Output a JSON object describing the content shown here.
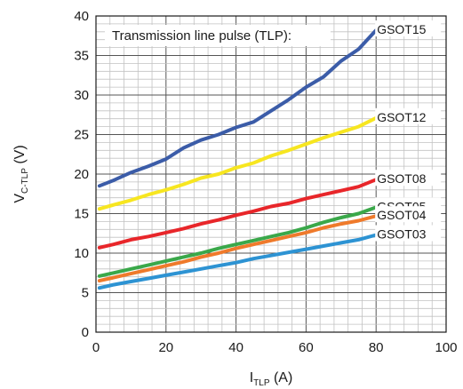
{
  "chart_data": {
    "type": "line",
    "title": "Transmission line pulse (TLP):",
    "xlabel": {
      "main": "I",
      "sub": "TLP",
      "unit": " (A)"
    },
    "ylabel": {
      "main": "V",
      "sub": "C-TLP",
      "unit": " (V)"
    },
    "xlim": [
      0,
      100
    ],
    "ylim": [
      0,
      40
    ],
    "xticks": [
      0,
      20,
      40,
      60,
      80,
      100
    ],
    "yticks": [
      0,
      5,
      10,
      15,
      20,
      25,
      30,
      35,
      40
    ],
    "grid": true,
    "legend": "labels at line ends",
    "series": [
      {
        "name": "GSOT15",
        "color": "#3b5ca8",
        "x": [
          1,
          5,
          10,
          15,
          20,
          25,
          30,
          35,
          40,
          45,
          50,
          55,
          60,
          65,
          70,
          75,
          80
        ],
        "y": [
          18.5,
          19.2,
          20.2,
          21.0,
          21.9,
          23.3,
          24.3,
          25.0,
          25.9,
          26.6,
          28.0,
          29.4,
          31.0,
          32.3,
          34.3,
          35.8,
          38.2
        ]
      },
      {
        "name": "GSOT12",
        "color": "#f7e620",
        "x": [
          1,
          5,
          10,
          15,
          20,
          25,
          30,
          35,
          40,
          45,
          50,
          55,
          60,
          65,
          70,
          75,
          80
        ],
        "y": [
          15.6,
          16.1,
          16.7,
          17.4,
          18.0,
          18.7,
          19.5,
          20.0,
          20.8,
          21.4,
          22.3,
          23.0,
          23.8,
          24.6,
          25.3,
          26.0,
          27.1
        ]
      },
      {
        "name": "GSOT08",
        "color": "#e8262a",
        "x": [
          1,
          5,
          10,
          15,
          20,
          25,
          30,
          35,
          40,
          45,
          50,
          55,
          60,
          65,
          70,
          75,
          80
        ],
        "y": [
          10.7,
          11.1,
          11.7,
          12.1,
          12.6,
          13.1,
          13.7,
          14.2,
          14.8,
          15.3,
          15.9,
          16.3,
          16.9,
          17.4,
          17.9,
          18.4,
          19.3
        ]
      },
      {
        "name": "GSOT05",
        "color": "#3aa84a",
        "x": [
          1,
          5,
          10,
          15,
          20,
          25,
          30,
          35,
          40,
          45,
          50,
          55,
          60,
          65,
          70,
          75,
          80
        ],
        "y": [
          7.1,
          7.5,
          8.0,
          8.5,
          9.0,
          9.5,
          10.0,
          10.6,
          11.1,
          11.6,
          12.1,
          12.6,
          13.2,
          13.9,
          14.5,
          15.0,
          15.8
        ]
      },
      {
        "name": "GSOT04",
        "color": "#ef7a2b",
        "x": [
          1,
          5,
          10,
          15,
          20,
          25,
          30,
          35,
          40,
          45,
          50,
          55,
          60,
          65,
          70,
          75,
          80
        ],
        "y": [
          6.5,
          6.9,
          7.4,
          7.9,
          8.4,
          8.9,
          9.5,
          10.0,
          10.6,
          11.1,
          11.6,
          12.1,
          12.6,
          13.2,
          13.7,
          14.1,
          14.7
        ]
      },
      {
        "name": "GSOT03",
        "color": "#2d93d3",
        "x": [
          1,
          5,
          10,
          15,
          20,
          25,
          30,
          35,
          40,
          45,
          50,
          55,
          60,
          65,
          70,
          75,
          80
        ],
        "y": [
          5.6,
          6.0,
          6.4,
          6.8,
          7.2,
          7.6,
          8.0,
          8.4,
          8.8,
          9.3,
          9.7,
          10.1,
          10.5,
          10.9,
          11.3,
          11.7,
          12.3
        ]
      }
    ]
  }
}
